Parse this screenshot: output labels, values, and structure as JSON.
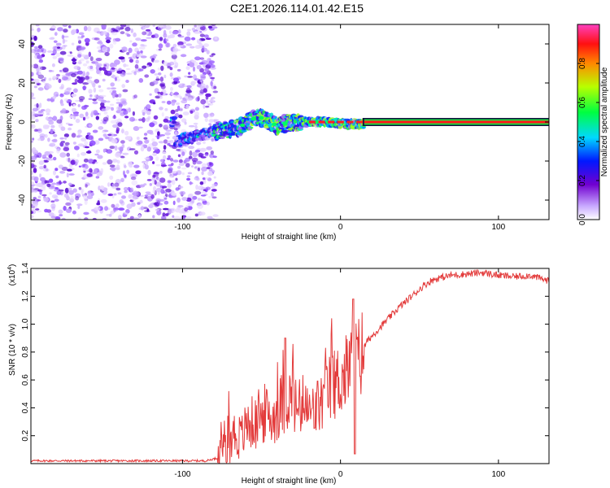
{
  "figure": {
    "title": "C2E1.2026.114.01.42.E15"
  },
  "chart_data": [
    {
      "type": "heatmap",
      "title": "C2E1.2026.114.01.42.E15",
      "xlabel": "Height of straight line (km)",
      "ylabel": "Frequency (Hz)",
      "xlim": [
        -196,
        132
      ],
      "ylim": [
        -50,
        50
      ],
      "xticks": [
        -100,
        0,
        100
      ],
      "yticks": [
        -40,
        -20,
        0,
        20,
        40
      ],
      "noise_region_x": [
        -196,
        -85
      ],
      "signal_onset_x": -107,
      "signal_drift": [
        {
          "x": -105,
          "freq": -10
        },
        {
          "x": -80,
          "freq": -5
        },
        {
          "x": -65,
          "freq": -3
        },
        {
          "x": -52,
          "freq": 3
        },
        {
          "x": -40,
          "freq": -2
        },
        {
          "x": -30,
          "freq": 0
        },
        {
          "x": -10,
          "freq": 0
        },
        {
          "x": 5,
          "freq": -1
        },
        {
          "x": 132,
          "freq": 0
        }
      ],
      "steady_line": {
        "x_start": 15,
        "x_end": 132,
        "freq": 0,
        "amplitude": 1.0
      },
      "colorbar": {
        "label": "Normalized spectral amplitude",
        "range": [
          0,
          1
        ],
        "ticks": [
          0.0,
          0.2,
          0.4,
          0.6,
          0.8
        ]
      }
    },
    {
      "type": "line",
      "xlabel": "Height of straight line (km)",
      "ylabel": "SNR (10 * v/v)",
      "y_multiplier": "(x10",
      "y_multiplier_exp": "4",
      "y_multiplier_close": ")",
      "xlim": [
        -196,
        132
      ],
      "ylim": [
        0,
        1.4
      ],
      "xticks": [
        -100,
        0,
        100
      ],
      "yticks": [
        0.2,
        0.4,
        0.6,
        0.8,
        1.0,
        1.2,
        1.4
      ],
      "color": "#e33b3b",
      "series": [
        {
          "name": "SNR",
          "points": [
            [
              -196,
              0.02
            ],
            [
              -150,
              0.02
            ],
            [
              -100,
              0.02
            ],
            [
              -85,
              0.02
            ],
            [
              -78,
              0.04
            ],
            [
              -73,
              0.08
            ],
            [
              -68,
              0.22
            ],
            [
              -63,
              0.18
            ],
            [
              -58,
              0.3
            ],
            [
              -53,
              0.28
            ],
            [
              -48,
              0.36
            ],
            [
              -43,
              0.32
            ],
            [
              -38,
              0.42
            ],
            [
              -33,
              0.48
            ],
            [
              -28,
              0.4
            ],
            [
              -23,
              0.38
            ],
            [
              -18,
              0.36
            ],
            [
              -13,
              0.42
            ],
            [
              -8,
              0.52
            ],
            [
              -3,
              0.58
            ],
            [
              2,
              0.62
            ],
            [
              7,
              0.72
            ],
            [
              12,
              0.76
            ],
            [
              17,
              0.88
            ],
            [
              22,
              0.94
            ],
            [
              27,
              1.0
            ],
            [
              32,
              1.06
            ],
            [
              37,
              1.12
            ],
            [
              42,
              1.17
            ],
            [
              47,
              1.22
            ],
            [
              52,
              1.27
            ],
            [
              57,
              1.31
            ],
            [
              62,
              1.33
            ],
            [
              70,
              1.35
            ],
            [
              80,
              1.36
            ],
            [
              90,
              1.37
            ],
            [
              100,
              1.35
            ],
            [
              110,
              1.34
            ],
            [
              120,
              1.35
            ],
            [
              132,
              1.31
            ]
          ],
          "features": [
            {
              "x": -35,
              "y": 0.9,
              "note": "peak"
            },
            {
              "x": 8,
              "y": 1.18,
              "note": "spike"
            },
            {
              "x": 9,
              "y": 0.07,
              "note": "dip"
            }
          ]
        }
      ]
    }
  ]
}
